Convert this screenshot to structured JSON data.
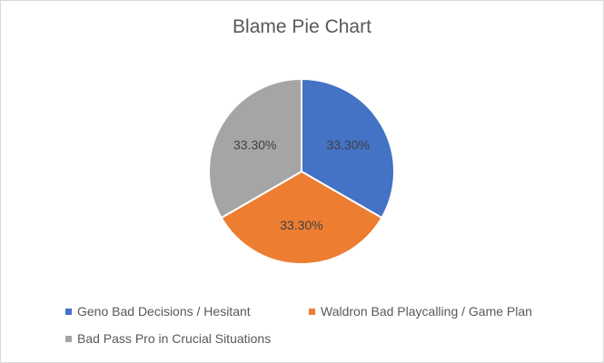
{
  "chart_data": {
    "type": "pie",
    "title": "Blame Pie Chart",
    "categories": [
      "Geno Bad Decisions / Hesitant",
      "Waldron Bad Playcalling / Game Plan",
      "Bad Pass Pro in Crucial Situations"
    ],
    "values": [
      33.3,
      33.3,
      33.3
    ],
    "labels": [
      "33.30%",
      "33.30%",
      "33.30%"
    ],
    "colors": [
      "#4472c4",
      "#ed7d31",
      "#a5a5a5"
    ],
    "legend_position": "bottom"
  }
}
